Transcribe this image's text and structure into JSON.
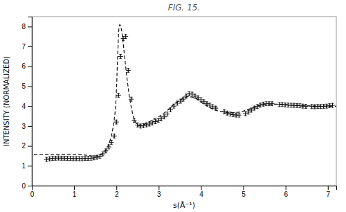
{
  "chart_data": {
    "type": "line",
    "title": "FIG. 15.",
    "xlabel": "s(Å⁻¹)",
    "ylabel": "INTENSITY (NORMALIZED)",
    "xlim": [
      0,
      7.2
    ],
    "ylim": [
      0,
      8.5
    ],
    "xticks": [
      0,
      1,
      2,
      3,
      4,
      5,
      6,
      7
    ],
    "yticks": [
      0,
      1,
      2,
      3,
      4,
      5,
      6,
      7,
      8
    ],
    "grid": false,
    "series": [
      {
        "type": "line",
        "line_style": "dashed",
        "color": "#111111",
        "x": [
          0.05,
          0.1,
          0.2,
          0.3,
          0.4,
          0.5,
          0.6,
          0.7,
          0.8,
          0.9,
          1.0,
          1.1,
          1.2,
          1.3,
          1.4,
          1.45,
          1.5,
          1.55,
          1.6,
          1.65,
          1.68,
          1.72,
          1.76,
          1.8,
          1.84,
          1.88,
          1.9,
          1.92,
          1.94,
          1.96,
          1.97,
          1.98,
          1.99,
          2.0,
          2.01,
          2.02,
          2.03,
          2.04,
          2.05,
          2.06,
          2.08,
          2.1,
          2.13,
          2.16,
          2.2,
          2.25,
          2.3,
          2.35,
          2.4,
          2.45,
          2.5,
          2.55,
          2.6,
          2.65,
          2.7,
          2.75,
          2.8,
          2.85,
          2.9,
          2.95,
          3.0,
          3.1,
          3.2,
          3.3,
          3.4,
          3.5,
          3.6,
          3.7,
          3.8,
          3.9,
          4.0,
          4.1,
          4.2,
          4.3,
          4.4,
          4.5,
          4.6,
          4.7,
          4.8,
          4.9,
          5.0,
          5.2,
          5.4,
          5.6,
          5.8,
          6.0,
          6.2,
          6.4,
          6.6,
          6.8,
          7.0,
          7.2
        ],
        "values": [
          1.57,
          1.57,
          1.57,
          1.57,
          1.57,
          1.57,
          1.57,
          1.57,
          1.57,
          1.57,
          1.57,
          1.56,
          1.55,
          1.53,
          1.5,
          1.49,
          1.49,
          1.5,
          1.52,
          1.57,
          1.62,
          1.7,
          1.82,
          1.98,
          2.2,
          2.5,
          2.7,
          2.92,
          3.18,
          3.5,
          3.72,
          3.98,
          4.3,
          4.75,
          5.3,
          5.95,
          6.55,
          7.1,
          7.62,
          7.95,
          8.1,
          8.05,
          7.72,
          7.2,
          6.35,
          5.4,
          4.58,
          3.95,
          3.48,
          3.2,
          3.05,
          3.02,
          3.04,
          3.08,
          3.13,
          3.18,
          3.24,
          3.3,
          3.37,
          3.42,
          3.47,
          3.6,
          3.78,
          3.98,
          4.16,
          4.3,
          4.42,
          4.48,
          4.45,
          4.36,
          4.2,
          4.06,
          3.93,
          3.83,
          3.76,
          3.72,
          3.68,
          3.67,
          3.68,
          3.7,
          3.75,
          3.9,
          4.05,
          4.1,
          4.1,
          4.08,
          4.05,
          4.03,
          4.01,
          4.0,
          3.99,
          3.99
        ]
      },
      {
        "type": "scatter",
        "marker": "plus",
        "color": "#111111",
        "x": [
          0.35,
          0.42,
          0.49,
          0.56,
          0.63,
          0.7,
          0.77,
          0.84,
          0.91,
          0.98,
          1.05,
          1.12,
          1.19,
          1.26,
          1.33,
          1.4,
          1.47,
          1.54,
          1.61,
          1.68,
          1.75,
          1.82,
          1.88,
          1.95,
          2.0,
          2.05,
          2.1,
          2.16,
          2.22,
          2.28,
          2.35,
          2.42,
          2.5,
          2.57,
          2.64,
          2.71,
          2.78,
          2.85,
          2.92,
          2.99,
          3.06,
          3.13,
          3.2,
          3.28,
          3.36,
          3.44,
          3.52,
          3.58,
          3.65,
          3.72,
          3.79,
          3.86,
          3.93,
          4.0,
          4.07,
          4.14,
          4.21,
          4.28,
          4.35,
          4.55,
          4.62,
          4.69,
          4.76,
          4.83,
          4.9,
          5.05,
          5.12,
          5.19,
          5.26,
          5.33,
          5.4,
          5.47,
          5.54,
          5.61,
          5.68,
          5.85,
          5.92,
          5.99,
          6.06,
          6.13,
          6.2,
          6.27,
          6.34,
          6.41,
          6.48,
          6.62,
          6.69,
          6.76,
          6.83,
          6.9,
          6.97,
          7.04,
          7.11
        ],
        "values": [
          1.32,
          1.35,
          1.37,
          1.38,
          1.39,
          1.38,
          1.38,
          1.37,
          1.37,
          1.36,
          1.36,
          1.36,
          1.36,
          1.37,
          1.37,
          1.38,
          1.4,
          1.43,
          1.48,
          1.6,
          1.75,
          1.95,
          2.18,
          2.5,
          3.2,
          4.55,
          6.5,
          7.4,
          7.5,
          5.8,
          4.35,
          3.28,
          3.05,
          3.0,
          3.02,
          3.06,
          3.1,
          3.16,
          3.22,
          3.28,
          3.36,
          3.46,
          3.6,
          3.82,
          4.0,
          4.15,
          4.25,
          4.35,
          4.5,
          4.62,
          4.6,
          4.5,
          4.42,
          4.32,
          4.22,
          4.12,
          4.05,
          3.97,
          3.9,
          3.72,
          3.65,
          3.6,
          3.57,
          3.55,
          3.55,
          3.62,
          3.7,
          3.8,
          3.9,
          3.98,
          4.05,
          4.1,
          4.12,
          4.12,
          4.12,
          4.08,
          4.08,
          4.06,
          4.05,
          4.04,
          4.04,
          4.03,
          4.02,
          4.0,
          3.99,
          3.98,
          3.97,
          3.98,
          3.98,
          3.99,
          4.0,
          4.02,
          4.04
        ],
        "error": 0.1
      }
    ]
  }
}
